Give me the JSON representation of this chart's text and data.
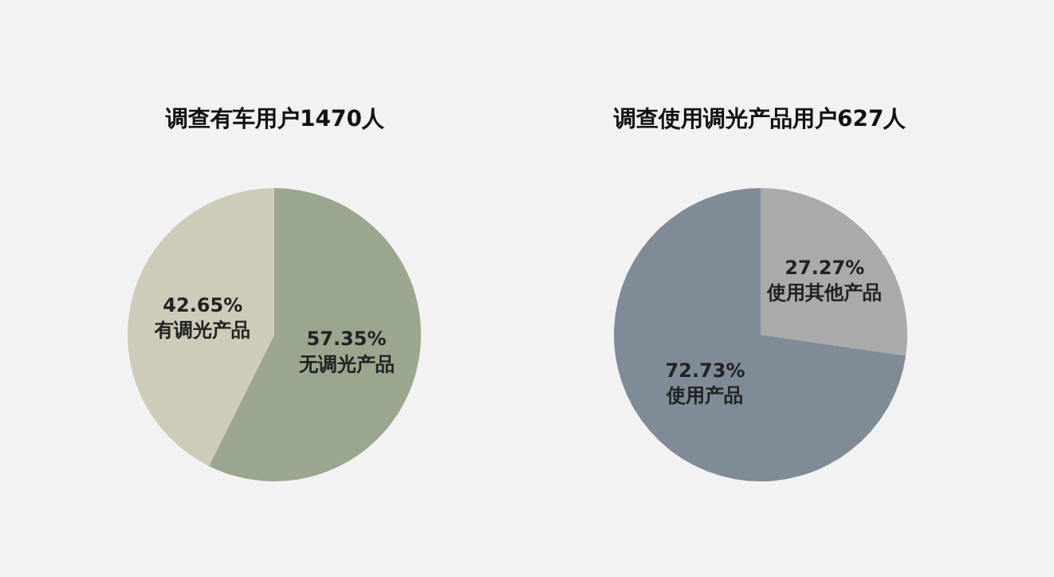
{
  "chart_data": [
    {
      "type": "pie",
      "title": "调查有车用户1470人",
      "categories": [
        "无调光产品",
        "有调光产品"
      ],
      "values": [
        57.35,
        42.65
      ],
      "value_labels": [
        "57.35%",
        "42.65%"
      ],
      "colors": [
        "#9ba68f",
        "#cfcbb9"
      ],
      "legend": false
    },
    {
      "type": "pie",
      "title": "调查使用调光产品用户627人",
      "categories": [
        "使用其他产品",
        "使用产品"
      ],
      "values": [
        27.27,
        72.73
      ],
      "value_labels": [
        "27.27%",
        "72.73%"
      ],
      "colors": [
        "#aaaaaa",
        "#7f8b97"
      ],
      "legend": false
    }
  ]
}
